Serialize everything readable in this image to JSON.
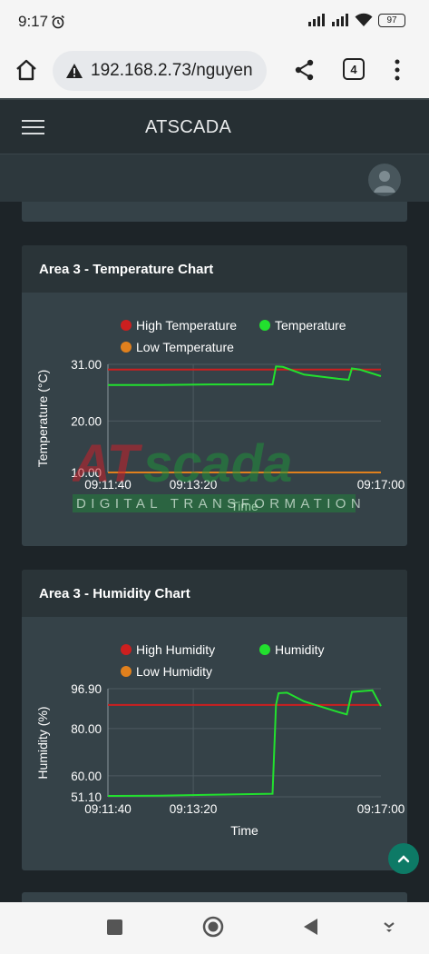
{
  "status_bar": {
    "time": "9:17",
    "battery": "97"
  },
  "browser": {
    "url": "192.168.2.73/nguyen",
    "tab_count": "4"
  },
  "app": {
    "title": "ATSCADA"
  },
  "temperature_chart": {
    "title": "Area 3 - Temperature Chart",
    "legend": [
      "High Temperature",
      "Temperature",
      "Low Temperature"
    ]
  },
  "humidity_chart": {
    "title": "Area 3 - Humidity Chart",
    "legend": [
      "High Humidity",
      "Humidity",
      "Low Humidity"
    ]
  },
  "watermark": {
    "logo": "ATscada",
    "tagline": "DIGITAL TRANSFORMATION"
  },
  "colors": {
    "high": "#cc1f1f",
    "value": "#22e02e",
    "low": "#e0801d",
    "panel": "#354248",
    "header": "#262f33",
    "accent": "#0d7a66"
  },
  "icons": [
    "alarm-icon",
    "signal-icon",
    "wifi-icon",
    "battery-icon",
    "home-icon",
    "warning-icon",
    "share-icon",
    "menu-dots-icon",
    "hamburger-icon",
    "avatar-icon",
    "chevron-up-icon",
    "recent-apps-icon",
    "home-circle-icon",
    "back-icon",
    "hide-keyboard-icon"
  ],
  "chart_data": [
    {
      "type": "line",
      "title": "Area 3 - Temperature Chart",
      "xlabel": "Time",
      "ylabel": "Temperature (°C)",
      "x_ticks": [
        "09:11:40",
        "09:13:20",
        "09:17:00"
      ],
      "y_ticks": [
        "10.00",
        "20.00",
        "31.00"
      ],
      "xlim": [
        "09:11:40",
        "09:17:00"
      ],
      "ylim": [
        10,
        31
      ],
      "legend_position": "top",
      "grid": true,
      "series": [
        {
          "name": "High Temperature",
          "color": "#cc1f1f",
          "points": [
            [
              "09:11:40",
              30.0
            ],
            [
              "09:17:00",
              30.0
            ]
          ]
        },
        {
          "name": "Temperature",
          "color": "#22e02e",
          "points": [
            [
              "09:11:40",
              27.0
            ],
            [
              "09:12:40",
              27.0
            ],
            [
              "09:13:40",
              27.1
            ],
            [
              "09:14:53",
              27.1
            ],
            [
              "09:14:57",
              30.6
            ],
            [
              "09:15:05",
              30.5
            ],
            [
              "09:15:30",
              29.0
            ],
            [
              "09:16:10",
              28.2
            ],
            [
              "09:16:22",
              28.0
            ],
            [
              "09:16:26",
              30.2
            ],
            [
              "09:16:35",
              30.0
            ],
            [
              "09:17:00",
              28.7
            ]
          ]
        },
        {
          "name": "Low Temperature",
          "color": "#e0801d",
          "points": [
            [
              "09:11:40",
              10.0
            ],
            [
              "09:17:00",
              10.0
            ]
          ]
        }
      ]
    },
    {
      "type": "line",
      "title": "Area 3 - Humidity Chart",
      "xlabel": "Time",
      "ylabel": "Humidity (%)",
      "x_ticks": [
        "09:11:40",
        "09:13:20",
        "09:17:00"
      ],
      "y_ticks": [
        "51.10",
        "60.00",
        "80.00",
        "96.90"
      ],
      "xlim": [
        "09:11:40",
        "09:17:00"
      ],
      "ylim": [
        51.1,
        96.9
      ],
      "legend_position": "top",
      "grid": true,
      "series": [
        {
          "name": "High Humidity",
          "color": "#cc1f1f",
          "points": [
            [
              "09:11:40",
              90.0
            ],
            [
              "09:17:00",
              90.0
            ]
          ]
        },
        {
          "name": "Humidity",
          "color": "#22e02e",
          "points": [
            [
              "09:11:40",
              51.5
            ],
            [
              "09:12:40",
              51.6
            ],
            [
              "09:13:40",
              52.0
            ],
            [
              "09:14:53",
              52.4
            ],
            [
              "09:14:57",
              90.0
            ],
            [
              "09:15:00",
              95.0
            ],
            [
              "09:15:10",
              95.2
            ],
            [
              "09:15:30",
              91.5
            ],
            [
              "09:16:10",
              87.0
            ],
            [
              "09:16:20",
              86.0
            ],
            [
              "09:16:26",
              95.5
            ],
            [
              "09:16:50",
              96.2
            ],
            [
              "09:17:00",
              89.5
            ]
          ]
        },
        {
          "name": "Low Humidity",
          "color": "#e0801d",
          "points": []
        }
      ]
    }
  ]
}
